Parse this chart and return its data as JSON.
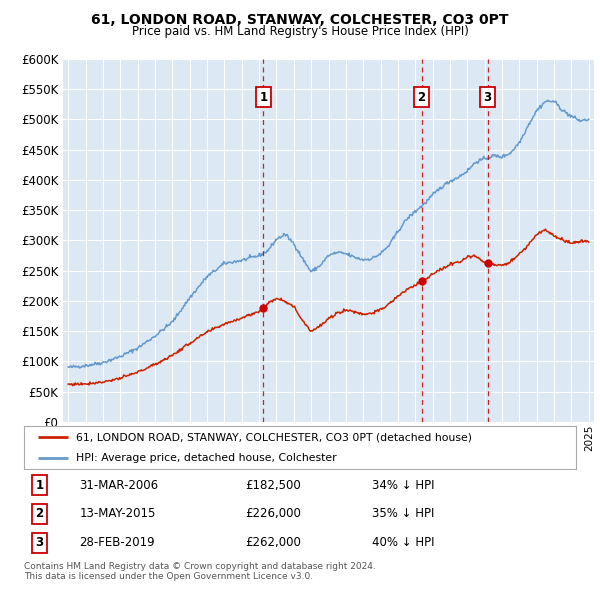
{
  "title": "61, LONDON ROAD, STANWAY, COLCHESTER, CO3 0PT",
  "subtitle": "Price paid vs. HM Land Registry's House Price Index (HPI)",
  "plot_bg": "#dce9f5",
  "red_color": "#cc2200",
  "blue_color": "#6699cc",
  "transactions": [
    {
      "num": 1,
      "date": "31-MAR-2006",
      "price": 182500,
      "pct": "34% ↓ HPI",
      "x_year": 2006.25
    },
    {
      "num": 2,
      "date": "13-MAY-2015",
      "price": 226000,
      "pct": "35% ↓ HPI",
      "x_year": 2015.37
    },
    {
      "num": 3,
      "date": "28-FEB-2019",
      "price": 262000,
      "pct": "40% ↓ HPI",
      "x_year": 2019.17
    }
  ],
  "legend_line1": "61, LONDON ROAD, STANWAY, COLCHESTER, CO3 0PT (detached house)",
  "legend_line2": "HPI: Average price, detached house, Colchester",
  "footer1": "Contains HM Land Registry data © Crown copyright and database right 2024.",
  "footer2": "This data is licensed under the Open Government Licence v3.0.",
  "ylim": [
    0,
    600000
  ],
  "yticks": [
    0,
    50000,
    100000,
    150000,
    200000,
    250000,
    300000,
    350000,
    400000,
    450000,
    500000,
    550000,
    600000
  ],
  "xlim_start": 1994.7,
  "xlim_end": 2025.3
}
